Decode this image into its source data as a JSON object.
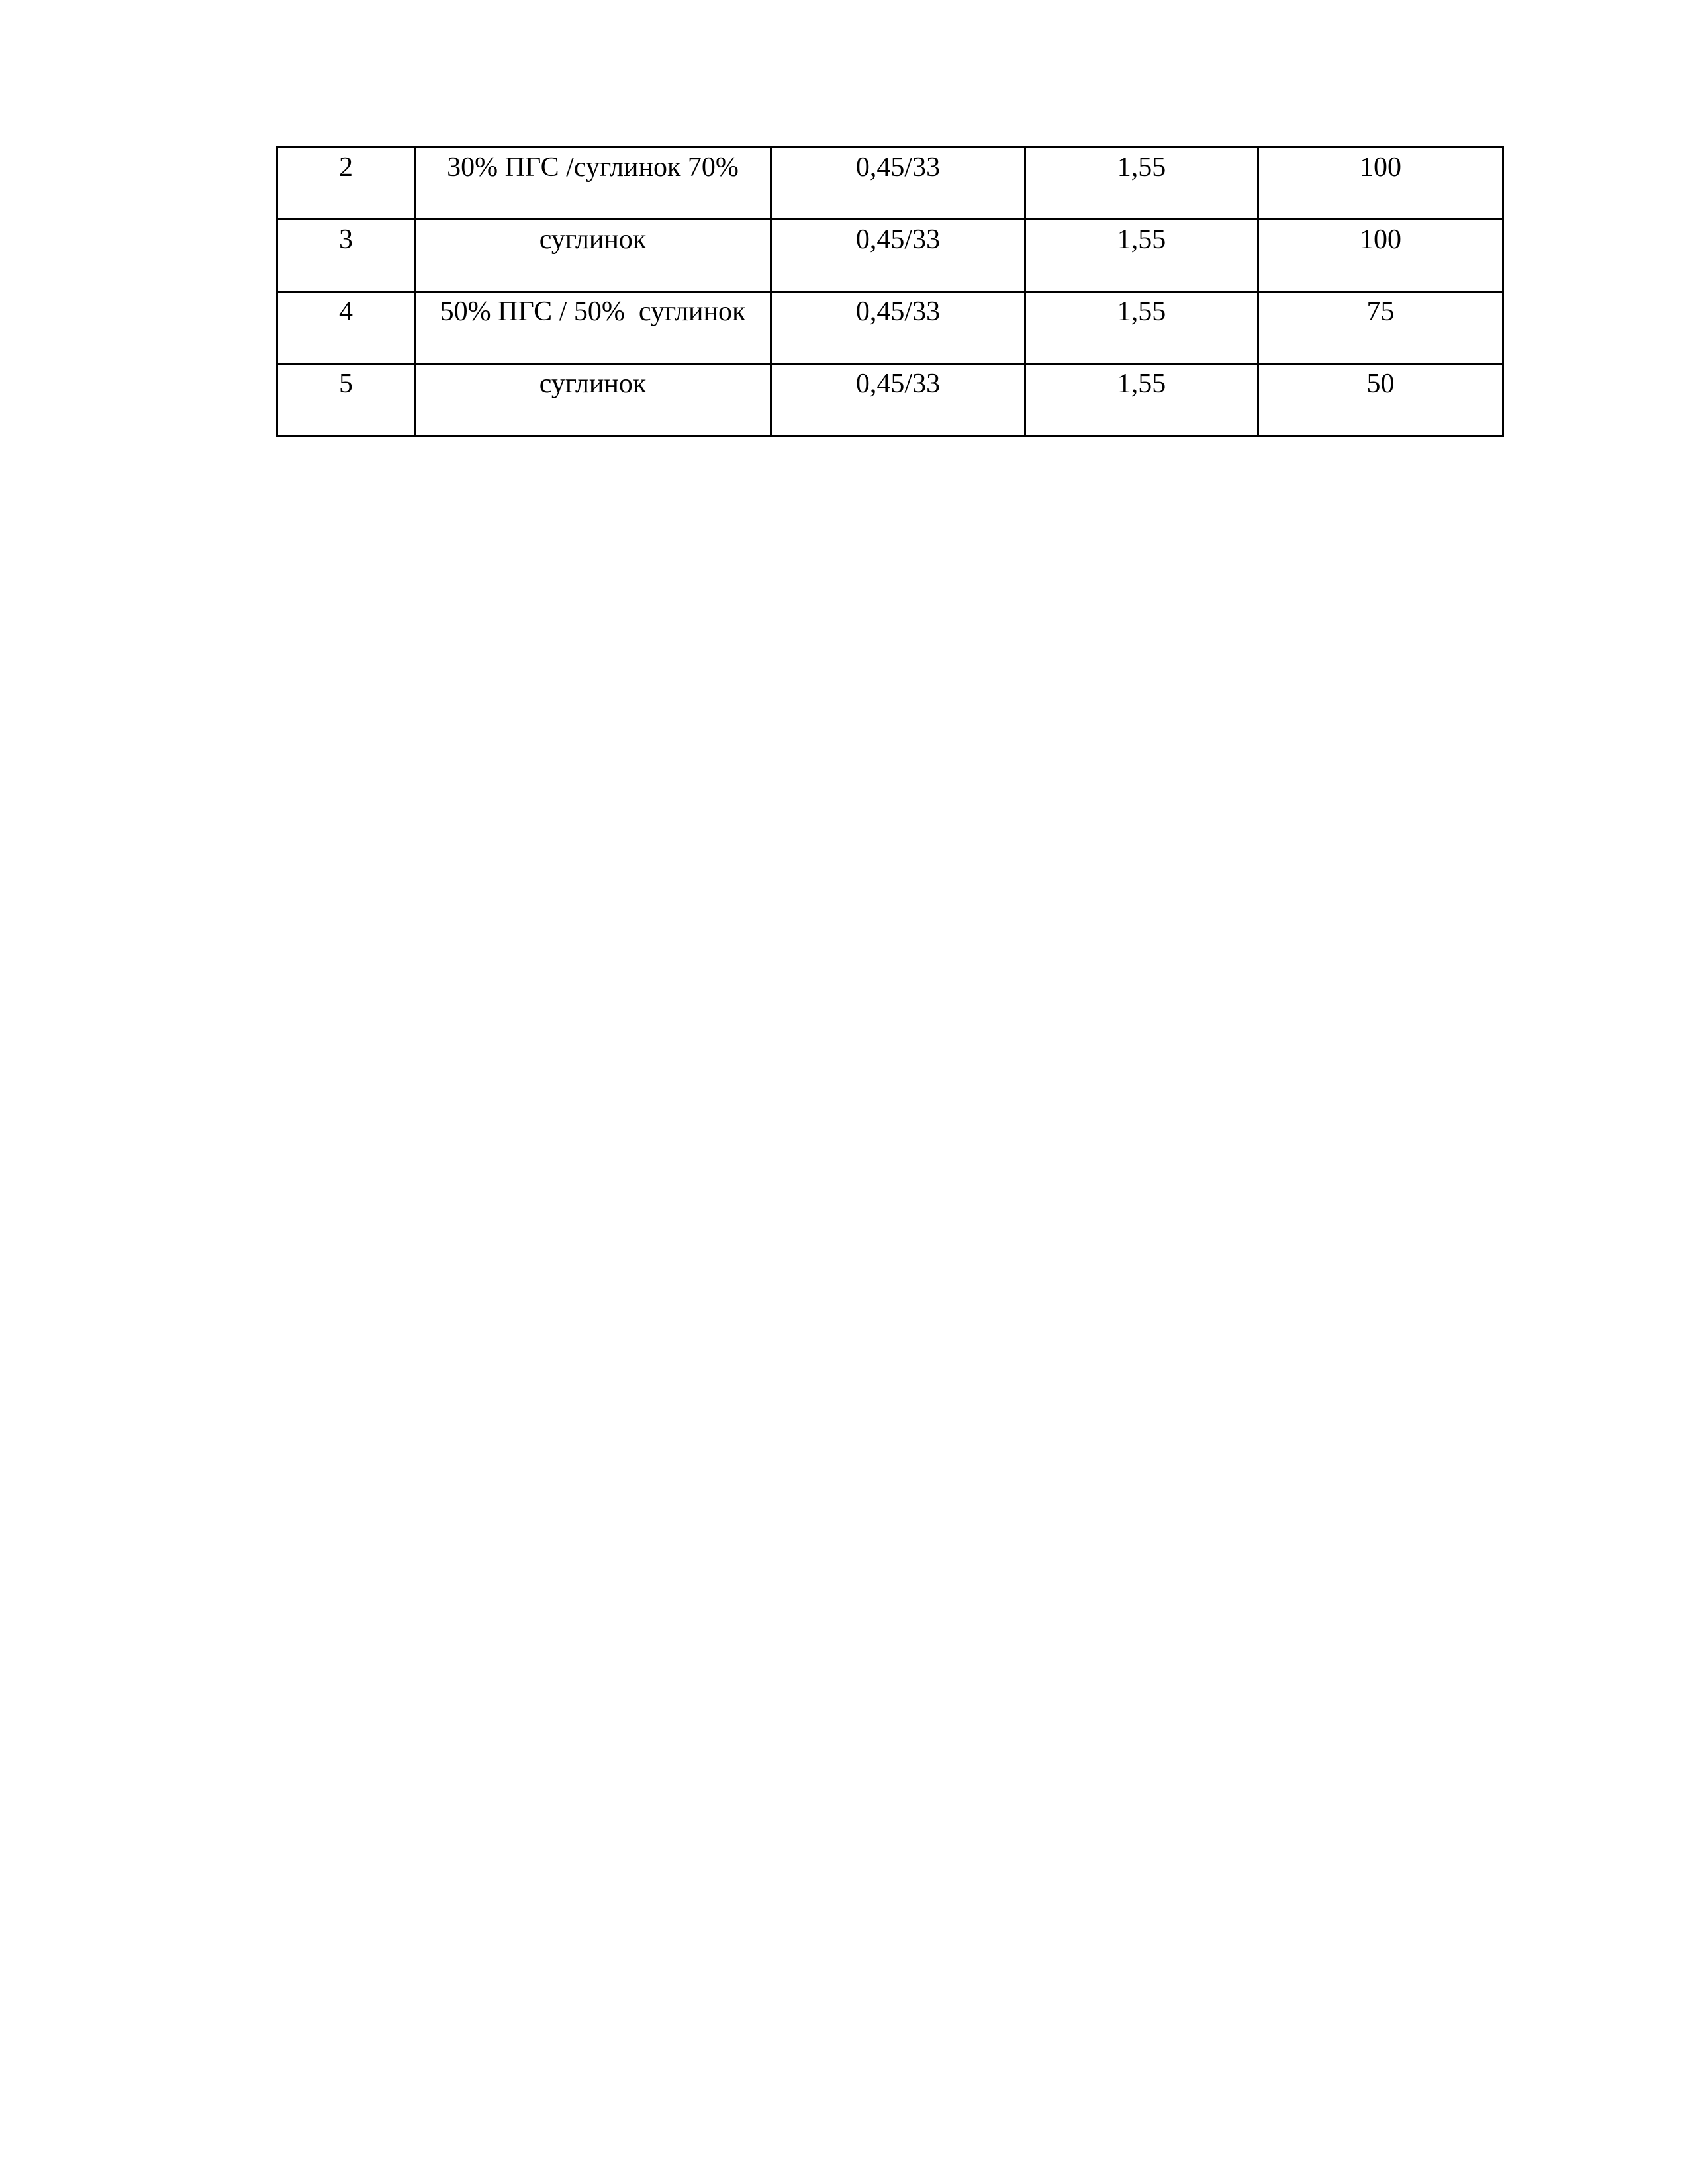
{
  "table": {
    "rows": [
      [
        "2",
        "30% ПГС /суглинок 70%",
        "0,45/33",
        "1,55",
        "100"
      ],
      [
        "3",
        "суглинок",
        "0,45/33",
        "1,55",
        "100"
      ],
      [
        "4",
        "50% ПГС / 50%  суглинок",
        "0,45/33",
        "1,55",
        "75"
      ],
      [
        "5",
        "суглинок",
        "0,45/33",
        "1,55",
        "50"
      ]
    ]
  }
}
